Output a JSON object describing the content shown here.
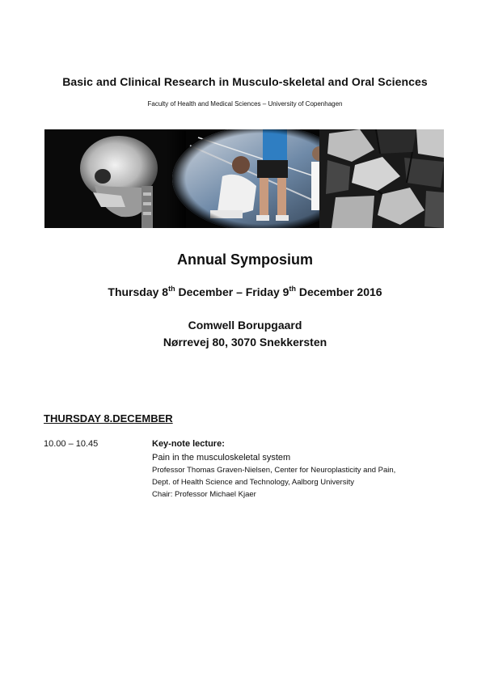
{
  "header": {
    "title": "Basic and Clinical Research in Musculo-skeletal and Oral Sciences",
    "subtitle": "Faculty of Health and Medical Sciences – University of Copenhagen"
  },
  "symposium": {
    "title": "Annual Symposium",
    "date_part1": "Thursday 8",
    "date_sup1": "th",
    "date_part2": " December – Friday 9",
    "date_sup2": "th",
    "date_part3": " December 2016",
    "venue_name": "Comwell Borupgaard",
    "venue_address": "Nørrevej 80, 3070 Snekkersten"
  },
  "program": {
    "day_heading": "THURSDAY 8.DECEMBER",
    "sessions": [
      {
        "time": "10.00 – 10.45",
        "type": "Key-note lecture:",
        "title": "Pain in the musculoskeletal system",
        "speaker": "Professor Thomas Graven-Nielsen, Center for Neuroplasticity and Pain,",
        "department": "Dept. of Health Science and Technology, Aalborg University",
        "chair": "Chair:  Professor Michael Kjaer"
      }
    ]
  }
}
